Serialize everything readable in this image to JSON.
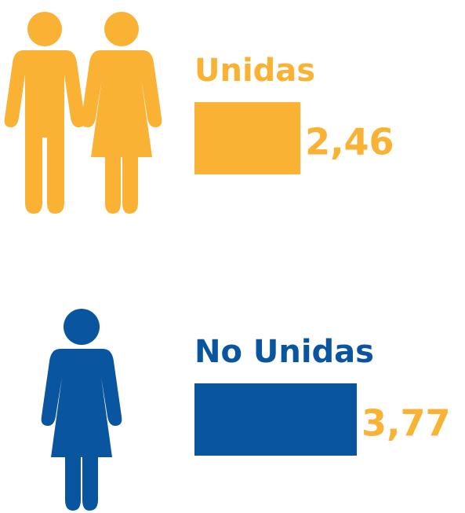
{
  "chart_data": {
    "type": "bar",
    "categories": [
      "Unidas",
      "No Unidas"
    ],
    "values": [
      2.46,
      3.77
    ],
    "value_labels": [
      "2,46",
      "3,77"
    ],
    "colors": [
      "#f9b233",
      "#0a55a0"
    ],
    "label_color": "#f9b233"
  }
}
